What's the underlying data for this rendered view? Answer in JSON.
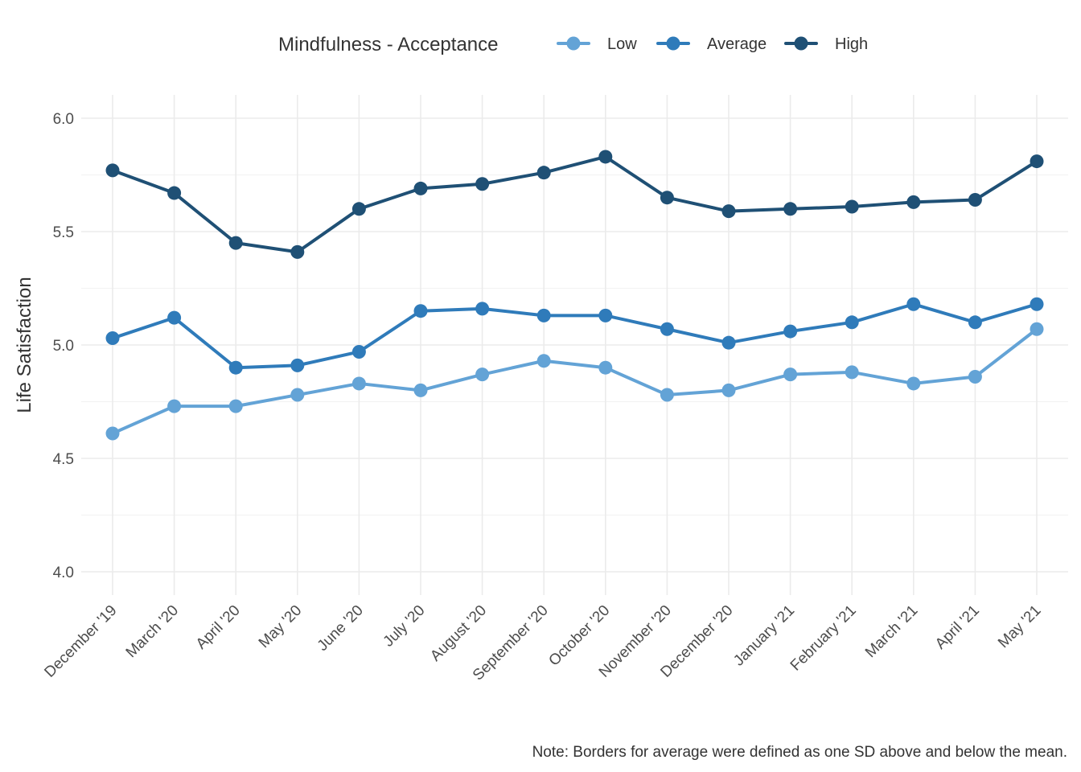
{
  "chart_data": {
    "type": "line",
    "legend": {
      "title": "Mindfulness - Acceptance",
      "position": "top"
    },
    "ylabel": "Life Satisfaction",
    "xlabel": "",
    "ylim": [
      3.9,
      6.1
    ],
    "yticks": [
      4.0,
      4.5,
      5.0,
      5.5,
      6.0
    ],
    "ytick_labels": [
      "4.0",
      "4.5",
      "5.0",
      "5.5",
      "6.0"
    ],
    "grid": true,
    "categories": [
      "December '19",
      "March '20",
      "April '20",
      "May '20",
      "June '20",
      "July '20",
      "August '20",
      "September '20",
      "October '20",
      "November '20",
      "December '20",
      "January '21",
      "February '21",
      "March '21",
      "April '21",
      "May '21"
    ],
    "series": [
      {
        "name": "Low",
        "color": "#63a3d6",
        "values": [
          4.61,
          4.73,
          4.73,
          4.78,
          4.83,
          4.8,
          4.87,
          4.93,
          4.9,
          4.78,
          4.8,
          4.87,
          4.88,
          4.83,
          4.86,
          5.07
        ]
      },
      {
        "name": "Average",
        "color": "#2f7bba",
        "values": [
          5.03,
          5.12,
          4.9,
          4.91,
          4.97,
          5.15,
          5.16,
          5.13,
          5.13,
          5.07,
          5.01,
          5.06,
          5.1,
          5.18,
          5.1,
          5.18
        ]
      },
      {
        "name": "High",
        "color": "#1f5075",
        "values": [
          5.77,
          5.67,
          5.45,
          5.41,
          5.6,
          5.69,
          5.71,
          5.76,
          5.83,
          5.65,
          5.59,
          5.6,
          5.61,
          5.63,
          5.64,
          5.81
        ]
      }
    ],
    "caption": "Note: Borders for average were defined as one SD above and below the mean."
  }
}
